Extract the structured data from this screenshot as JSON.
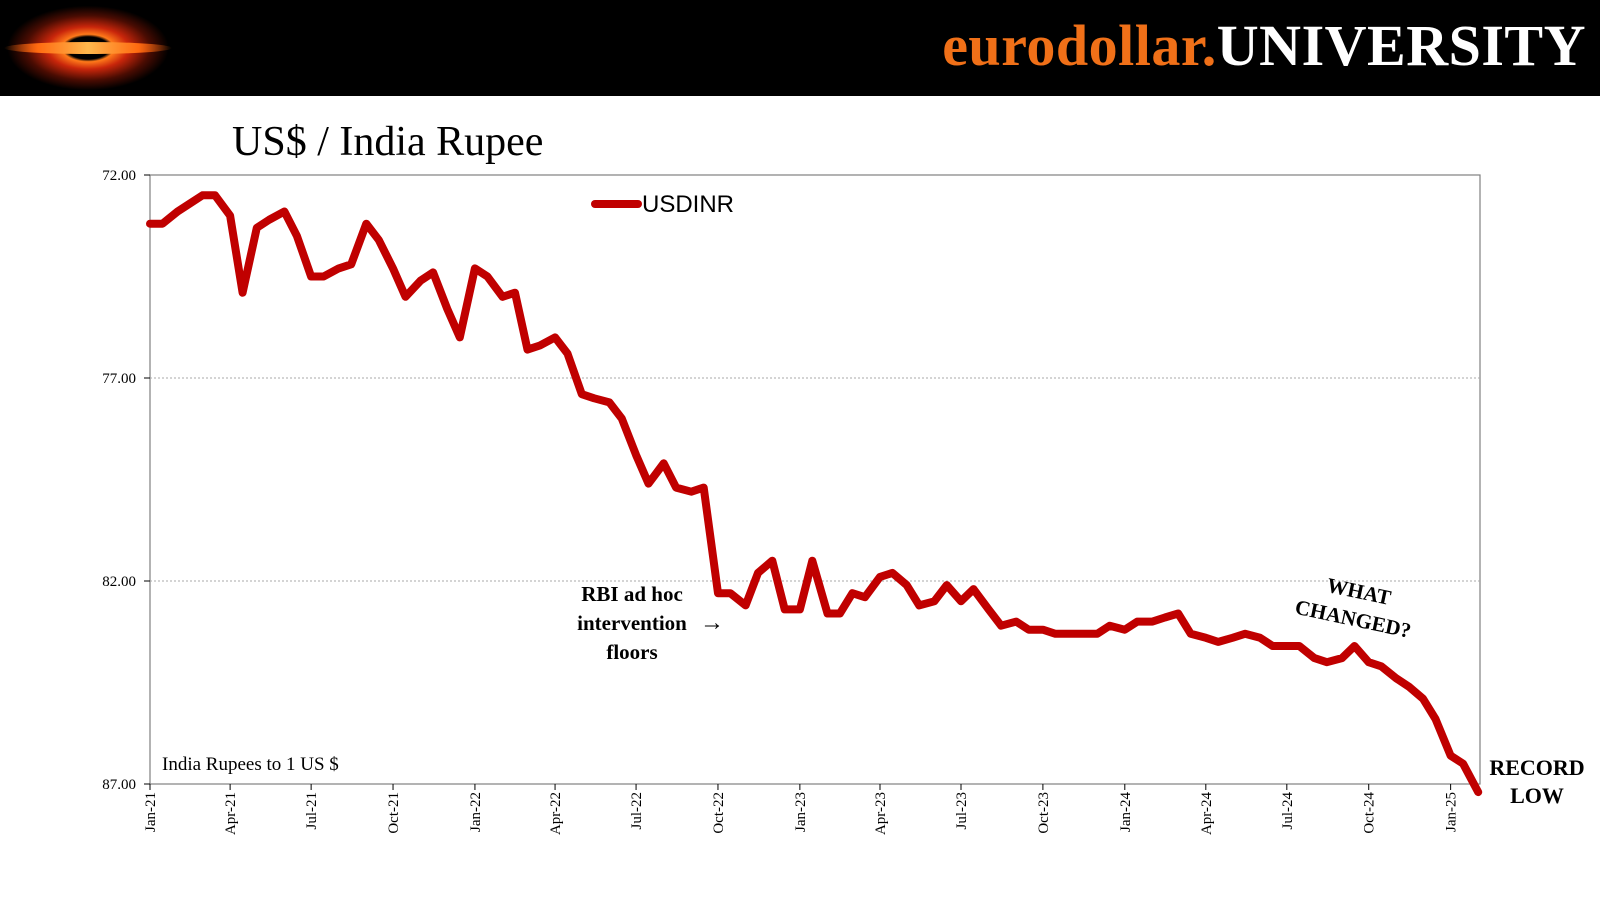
{
  "header": {
    "brand_part1": "eurodollar.",
    "brand_part2": "UNIVERSITY",
    "brand_color": "#f07018"
  },
  "chart_data": {
    "type": "line",
    "title": "US$ / India Rupee",
    "xlabel": "",
    "ylabel": "",
    "y_note": "India Rupees to 1 US $",
    "y_inverted": true,
    "ylim": [
      72.0,
      87.0
    ],
    "y_ticks": [
      "72.00",
      "77.00",
      "82.00",
      "87.00"
    ],
    "x_ticks": [
      "Jan-21",
      "Apr-21",
      "Jul-21",
      "Oct-21",
      "Jan-22",
      "Apr-22",
      "Jul-22",
      "Oct-22",
      "Jan-23",
      "Apr-23",
      "Jul-23",
      "Oct-23",
      "Jan-24",
      "Apr-24",
      "Jul-24",
      "Oct-24",
      "Jan-25"
    ],
    "grid": "horizontal",
    "legend_position": "top-center",
    "series": [
      {
        "name": "USDINR",
        "color": "#c00000",
        "x": [
          "2021-01-01",
          "2021-01-15",
          "2021-02-01",
          "2021-02-15",
          "2021-03-01",
          "2021-03-15",
          "2021-04-01",
          "2021-04-15",
          "2021-05-01",
          "2021-05-15",
          "2021-06-01",
          "2021-06-15",
          "2021-07-01",
          "2021-07-15",
          "2021-08-01",
          "2021-08-15",
          "2021-09-01",
          "2021-09-15",
          "2021-10-01",
          "2021-10-15",
          "2021-11-01",
          "2021-11-15",
          "2021-12-01",
          "2021-12-15",
          "2022-01-01",
          "2022-01-15",
          "2022-02-01",
          "2022-02-15",
          "2022-03-01",
          "2022-03-15",
          "2022-04-01",
          "2022-04-15",
          "2022-05-01",
          "2022-05-15",
          "2022-06-01",
          "2022-06-15",
          "2022-07-01",
          "2022-07-15",
          "2022-08-01",
          "2022-08-15",
          "2022-09-01",
          "2022-09-15",
          "2022-10-01",
          "2022-10-15",
          "2022-11-01",
          "2022-11-15",
          "2022-12-01",
          "2022-12-15",
          "2023-01-01",
          "2023-01-15",
          "2023-02-01",
          "2023-02-15",
          "2023-03-01",
          "2023-03-15",
          "2023-04-01",
          "2023-04-15",
          "2023-05-01",
          "2023-05-15",
          "2023-06-01",
          "2023-06-15",
          "2023-07-01",
          "2023-07-15",
          "2023-08-01",
          "2023-08-15",
          "2023-09-01",
          "2023-09-15",
          "2023-10-01",
          "2023-10-15",
          "2023-11-01",
          "2023-11-15",
          "2023-12-01",
          "2023-12-15",
          "2024-01-01",
          "2024-01-15",
          "2024-02-01",
          "2024-02-15",
          "2024-03-01",
          "2024-03-15",
          "2024-04-01",
          "2024-04-15",
          "2024-05-01",
          "2024-05-15",
          "2024-06-01",
          "2024-06-15",
          "2024-07-01",
          "2024-07-15",
          "2024-08-01",
          "2024-08-15",
          "2024-09-01",
          "2024-09-15",
          "2024-10-01",
          "2024-10-15",
          "2024-11-01",
          "2024-11-15",
          "2024-12-01",
          "2024-12-15",
          "2025-01-01",
          "2025-01-15",
          "2025-02-01"
        ],
        "values": [
          73.2,
          73.2,
          72.9,
          72.7,
          72.5,
          72.5,
          73.0,
          74.9,
          73.3,
          73.1,
          72.9,
          73.5,
          74.5,
          74.5,
          74.3,
          74.2,
          73.2,
          73.6,
          74.3,
          75.0,
          74.6,
          74.4,
          75.3,
          76.0,
          74.3,
          74.5,
          75.0,
          74.9,
          76.3,
          76.2,
          76.0,
          76.4,
          77.4,
          77.5,
          77.6,
          78.0,
          78.9,
          79.6,
          79.1,
          79.7,
          79.8,
          79.7,
          82.3,
          82.3,
          82.6,
          81.8,
          81.5,
          82.7,
          82.7,
          81.5,
          82.8,
          82.8,
          82.3,
          82.4,
          81.9,
          81.8,
          82.1,
          82.6,
          82.5,
          82.1,
          82.5,
          82.2,
          82.7,
          83.1,
          83.0,
          83.2,
          83.2,
          83.3,
          83.3,
          83.3,
          83.3,
          83.1,
          83.2,
          83.0,
          83.0,
          82.9,
          82.8,
          83.3,
          83.4,
          83.5,
          83.4,
          83.3,
          83.4,
          83.6,
          83.6,
          83.6,
          83.9,
          84.0,
          83.9,
          83.6,
          84.0,
          84.1,
          84.4,
          84.6,
          84.9,
          85.4,
          86.3,
          86.5,
          87.2
        ]
      }
    ],
    "annotations": [
      {
        "lines": [
          "RBI ad hoc",
          "intervention",
          "floors"
        ],
        "arrow": "→",
        "at": "2022-10-15"
      },
      {
        "lines": [
          "WHAT",
          "CHANGED?"
        ],
        "at": "2024-08-15"
      },
      {
        "lines": [
          "RECORD",
          "LOW"
        ],
        "at": "2025-02-01"
      }
    ]
  }
}
